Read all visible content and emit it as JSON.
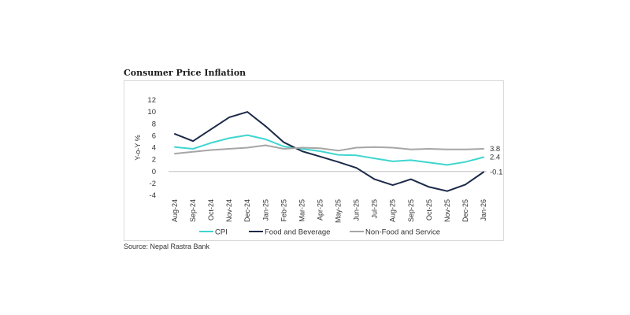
{
  "chart_data": {
    "type": "line",
    "title": "Consumer Price Inflation",
    "source": "Source: Nepal Rastra Bank",
    "ylabel": "Y-o-Y %",
    "xlabel": "",
    "ylim": [
      -4,
      12
    ],
    "yticks": [
      -4,
      -2,
      0,
      2,
      4,
      6,
      8,
      10,
      12
    ],
    "grid": false,
    "legend_position": "bottom",
    "categories": [
      "Aug-24",
      "Sep-24",
      "Oct-24",
      "Nov-24",
      "Dec-24",
      "Jan-25",
      "Feb-25",
      "Mar-25",
      "Apr-25",
      "May-25",
      "Jun-25",
      "Jul-25",
      "Aug-25",
      "Sep-25",
      "Oct-25",
      "Nov-25",
      "Dec-25",
      "Jan-26"
    ],
    "series": [
      {
        "name": "CPI",
        "color": "#3fd6d0",
        "values": [
          4.1,
          3.8,
          4.8,
          5.6,
          6.1,
          5.4,
          4.2,
          3.8,
          3.4,
          2.8,
          2.7,
          2.2,
          1.7,
          1.9,
          1.5,
          1.1,
          1.6,
          2.4
        ],
        "end_label": "2.4"
      },
      {
        "name": "Food and Beverage",
        "color": "#1b2a48",
        "values": [
          6.3,
          5.1,
          7.1,
          9.1,
          10.0,
          7.6,
          4.9,
          3.4,
          2.5,
          1.6,
          0.6,
          -1.3,
          -2.3,
          -1.3,
          -2.6,
          -3.3,
          -2.2,
          -0.1
        ],
        "end_label": "-0.1"
      },
      {
        "name": "Non-Food and Service",
        "color": "#a6a6a6",
        "values": [
          3.0,
          3.3,
          3.6,
          3.8,
          4.0,
          4.4,
          3.8,
          4.0,
          3.9,
          3.5,
          4.0,
          4.1,
          4.0,
          3.7,
          3.8,
          3.7,
          3.7,
          3.8
        ],
        "end_label": "3.8"
      }
    ]
  }
}
